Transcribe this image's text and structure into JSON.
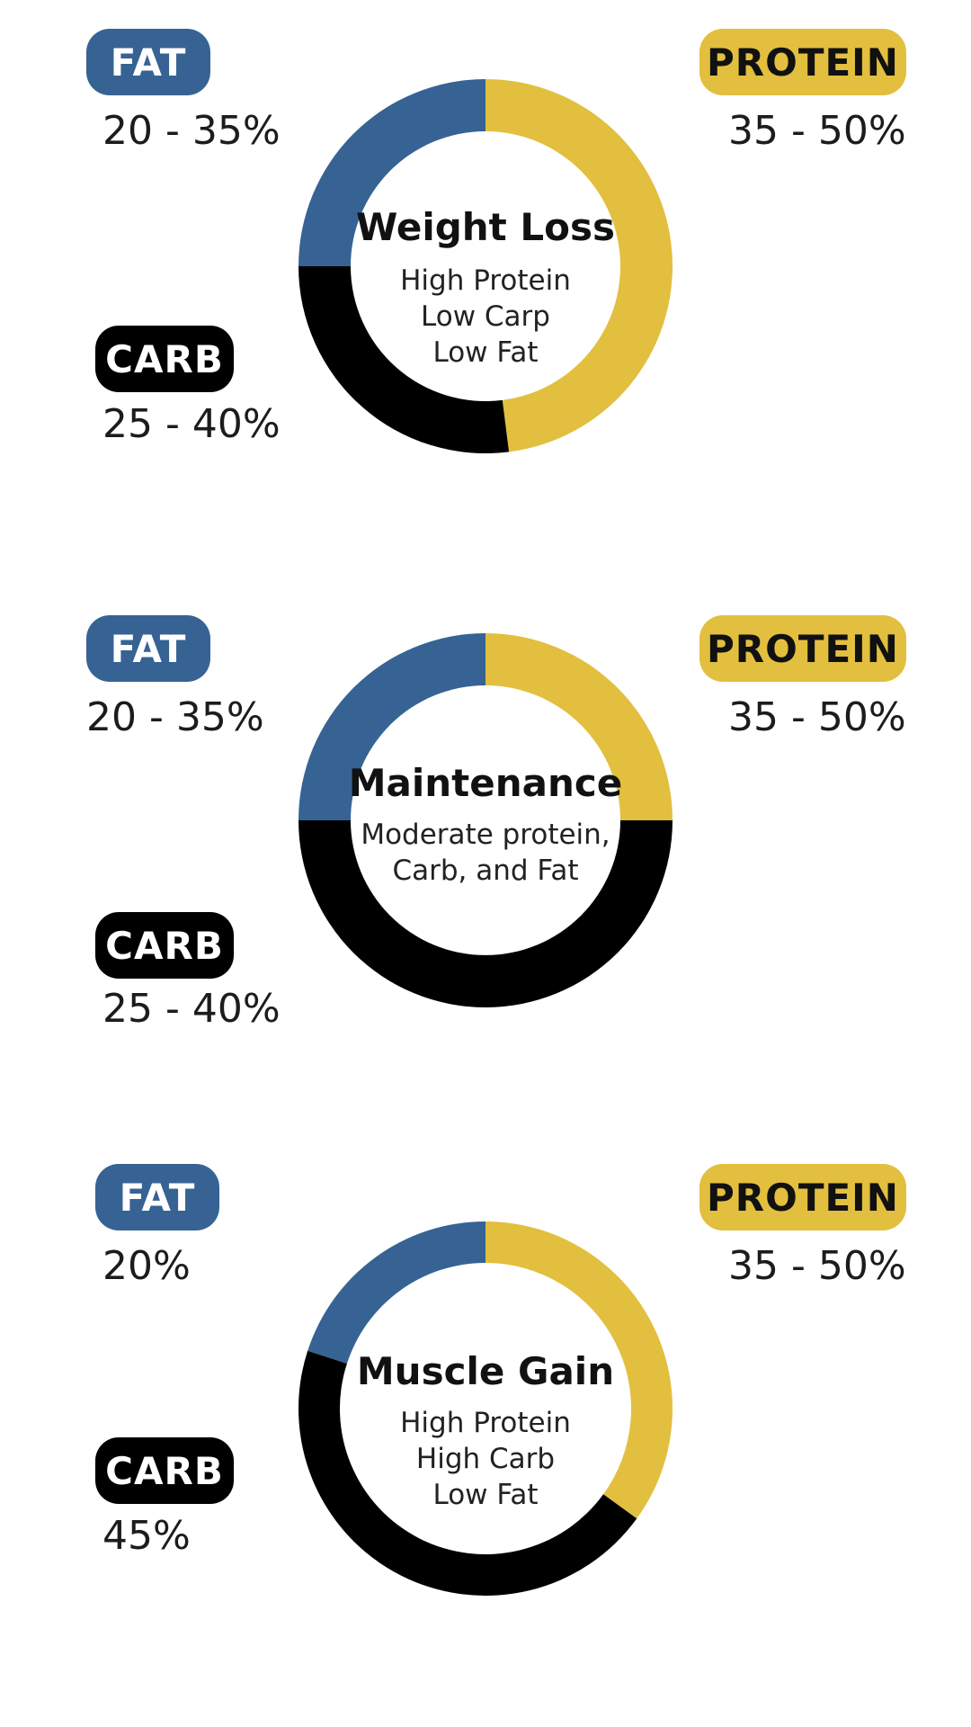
{
  "colors": {
    "fat": "#366394",
    "protein": "#e2bf3e",
    "carb": "#000000"
  },
  "chart_data": [
    {
      "type": "pie",
      "title": "Weight Loss",
      "subtitle": [
        "High Protein",
        "Low Carp",
        "Low Fat"
      ],
      "labels": [
        "PROTEIN",
        "CARB",
        "FAT"
      ],
      "ranges": [
        "35 - 50%",
        "25 - 40%",
        "20 - 35%"
      ],
      "values": [
        48,
        27,
        25
      ],
      "colors": [
        "#e2bf3e",
        "#000000",
        "#366394"
      ]
    },
    {
      "type": "pie",
      "title": "Maintenance",
      "subtitle": [
        "Moderate protein,",
        "Carb, and Fat"
      ],
      "labels": [
        "PROTEIN",
        "CARB",
        "FAT"
      ],
      "ranges": [
        "35 - 50%",
        "25 - 40%",
        "20 - 35%"
      ],
      "values": [
        25,
        50,
        25
      ],
      "colors": [
        "#e2bf3e",
        "#000000",
        "#366394"
      ]
    },
    {
      "type": "pie",
      "title": "Muscle Gain",
      "subtitle": [
        "High Protein",
        "High Carb",
        "Low Fat"
      ],
      "labels": [
        "PROTEIN",
        "CARB",
        "FAT"
      ],
      "ranges": [
        "35 - 50%",
        "45%",
        "20%"
      ],
      "values": [
        35,
        45,
        20
      ],
      "colors": [
        "#e2bf3e",
        "#000000",
        "#366394"
      ]
    }
  ]
}
